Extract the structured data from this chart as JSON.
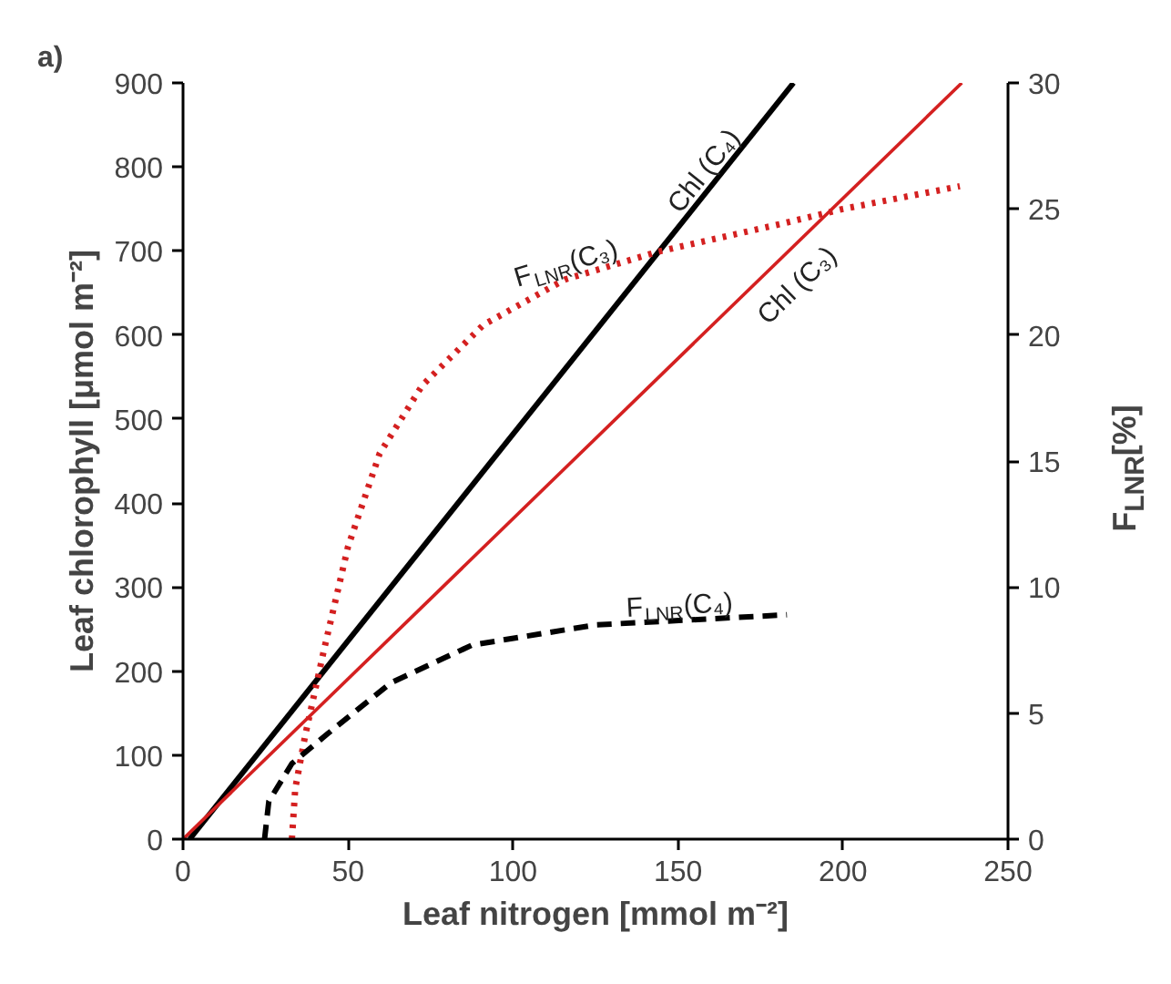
{
  "chart_data": {
    "type": "line",
    "title": "a)",
    "xlabel": "Leaf nitrogen [mmol m⁻²]",
    "ylabel": "Leaf chlorophyll [μmol m⁻²]",
    "y2label": "F$_{LNR}$[%]",
    "xlim": [
      0,
      250
    ],
    "xticks": [
      0,
      50,
      100,
      150,
      200,
      250
    ],
    "ylim": [
      0,
      900
    ],
    "yticks": [
      0,
      100,
      200,
      300,
      400,
      500,
      600,
      700,
      800,
      900
    ],
    "y2lim": [
      0,
      30
    ],
    "y2ticks": [
      0,
      5,
      10,
      15,
      20,
      25,
      30
    ],
    "grid": false,
    "legend": false,
    "series": [
      {
        "name": "Chl (C₄)",
        "color": "#000000",
        "line_style": "solid",
        "x": [
          2,
          185
        ],
        "values": [
          0,
          900
        ]
      },
      {
        "name": "Chl (C₃)",
        "color": "#d42020",
        "line_style": "solid",
        "x": [
          0,
          236
        ],
        "values": [
          0,
          900
        ]
      },
      {
        "name": "F$_{LNR}$ (C₃)",
        "color": "#d42020",
        "line_style": "dotted",
        "axis": "y2",
        "x": [
          33,
          34,
          37,
          42.7,
          50,
          59.6,
          72.5,
          91,
          115.7,
          143.8,
          181,
          200,
          235.4
        ],
        "values": [
          0,
          2,
          4.1,
          7.5,
          11.6,
          15.3,
          18.0,
          20.4,
          22.2,
          23.3,
          24.4,
          25.0,
          25.9
        ]
      },
      {
        "name": "F$_{LNR}$ (C₄)",
        "color": "#000000",
        "line_style": "dashed",
        "axis": "y2",
        "x": [
          24.7,
          26,
          33,
          44,
          63,
          87.6,
          125,
          183
        ],
        "values": [
          0,
          1.5,
          3.0,
          4.2,
          6.2,
          7.7,
          8.5,
          8.9
        ]
      }
    ]
  }
}
